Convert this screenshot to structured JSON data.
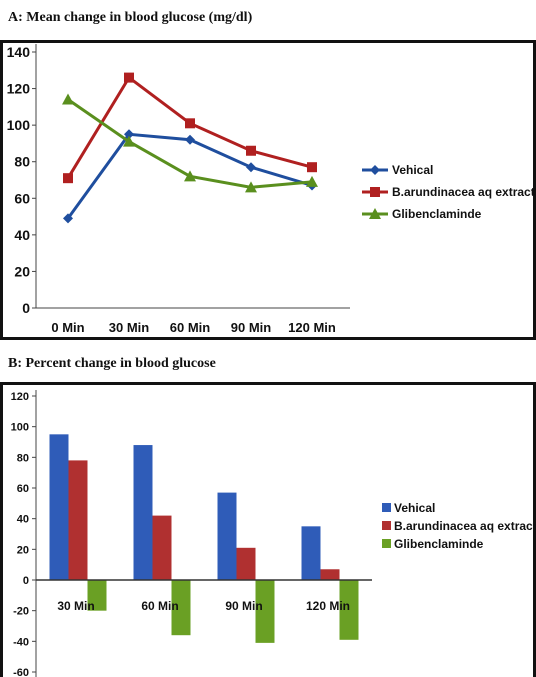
{
  "panels": {
    "a_title": "A: Mean change in blood glucose (mg/dl)",
    "b_title": "B: Percent change in blood glucose"
  },
  "chart_data": [
    {
      "type": "line",
      "title": "A: Mean change in blood glucose (mg/dl)",
      "categories": [
        "0 Min",
        "30 Min",
        "60 Min",
        "90 Min",
        "120 Min"
      ],
      "ylim": [
        0,
        140
      ],
      "yticks": [
        0,
        20,
        40,
        60,
        80,
        100,
        120,
        140
      ],
      "grid": false,
      "legend_position": "right",
      "series": [
        {
          "name": "Vehical",
          "color": "#1f4e9e",
          "marker": "diamond",
          "values": [
            49,
            95,
            92,
            77,
            67
          ]
        },
        {
          "name": "B.arundinacea aq extract",
          "color": "#b02020",
          "marker": "square",
          "values": [
            71,
            126,
            101,
            86,
            77
          ]
        },
        {
          "name": "Glibenclaminde",
          "color": "#5a8f1e",
          "marker": "triangle",
          "values": [
            114,
            91,
            72,
            66,
            69
          ]
        }
      ]
    },
    {
      "type": "bar",
      "title": "B: Percent change in blood glucose",
      "categories": [
        "30 Min",
        "60 Min",
        "90 Min",
        "120 Min"
      ],
      "ylim": [
        -60,
        120
      ],
      "yticks": [
        -60,
        -40,
        -20,
        0,
        20,
        40,
        60,
        80,
        100,
        120
      ],
      "grid": false,
      "legend_position": "right",
      "series": [
        {
          "name": "Vehical",
          "color": "#2f5cb8",
          "values": [
            95,
            88,
            57,
            35
          ]
        },
        {
          "name": "B.arundinacea aq extract",
          "color": "#b03030",
          "values": [
            78,
            42,
            21,
            7
          ]
        },
        {
          "name": "Glibenclaminde",
          "color": "#6aa024",
          "values": [
            -20,
            -36,
            -41,
            -39
          ]
        }
      ]
    }
  ]
}
